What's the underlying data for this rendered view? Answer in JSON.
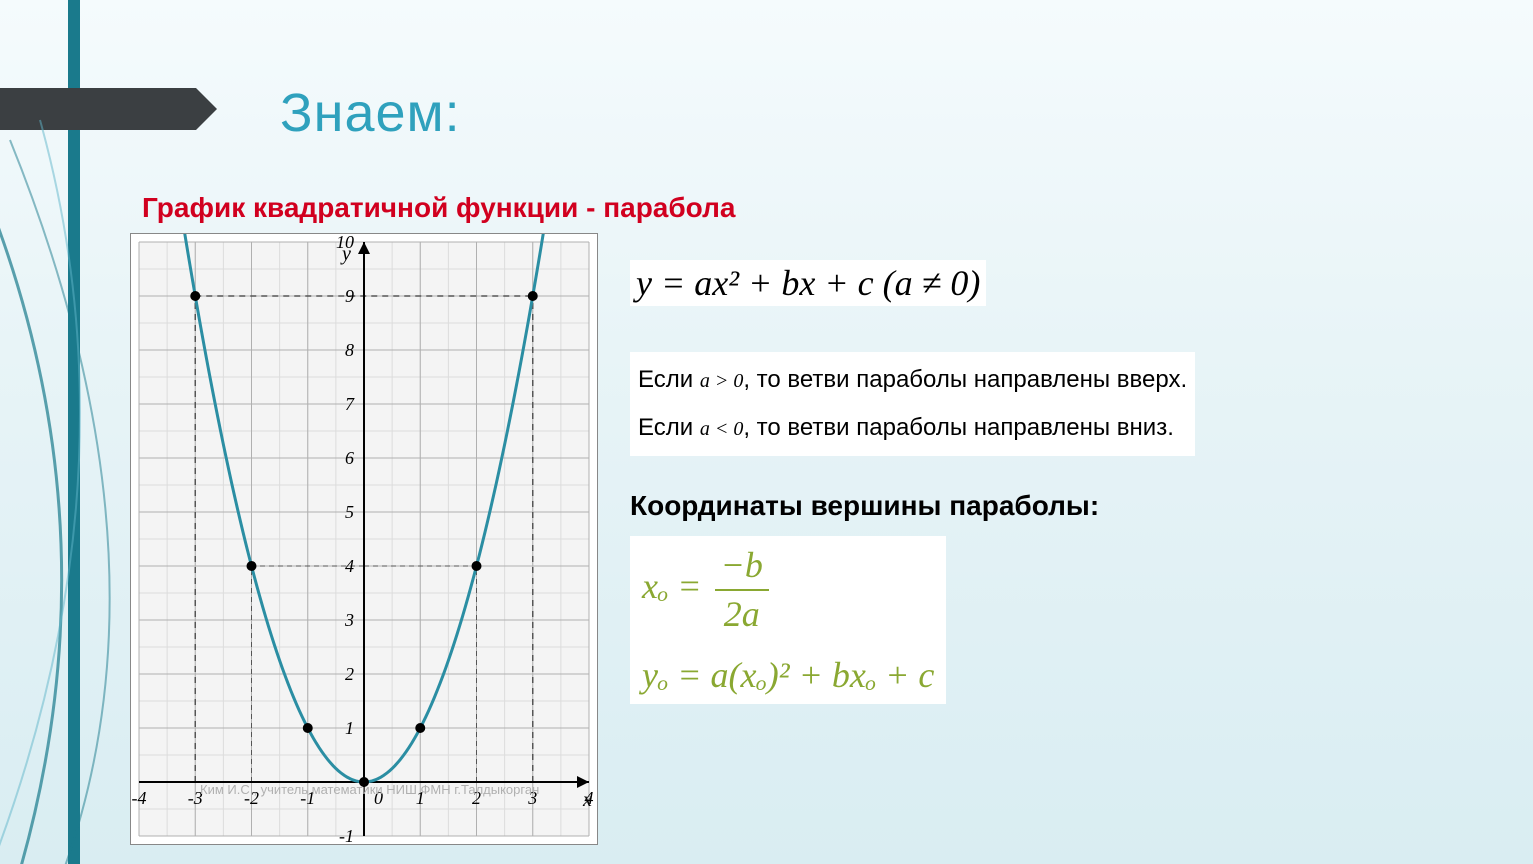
{
  "title": "Знаем:",
  "subtitle": "График квадратичной функции - парабола",
  "watermark": "Ким И.С., учитель математики НИШ ФМН г.Талдыкорган",
  "formula_main": "y = ax² + bx + c  (a ≠ 0)",
  "cond1_prefix": "Если ",
  "cond1_math": "a > 0",
  "cond1_suffix": ", то ветви параболы направлены вверх.",
  "cond2_prefix": "Если ",
  "cond2_math": "a < 0",
  "cond2_suffix": ", то ветви параболы направлены вниз.",
  "vertex_label": "Координаты вершины параболы:",
  "vertex_x_lhs": "xₒ =",
  "vertex_x_num": "−b",
  "vertex_x_den": "2a",
  "vertex_y": "yₒ = a(xₒ)² + bxₒ + c",
  "chart": {
    "type": "line",
    "x_label": "x",
    "y_label": "y",
    "xlim": [
      -4,
      4
    ],
    "ylim": [
      -1,
      10
    ],
    "xtick_step": 1,
    "ytick_step": 1,
    "x_ticks": [
      -4,
      -3,
      -2,
      -1,
      1,
      2,
      3,
      4
    ],
    "y_ticks": [
      -1,
      1,
      2,
      3,
      4,
      5,
      6,
      7,
      8,
      9,
      10
    ],
    "origin_label": "0",
    "curve_color": "#2b8ea3",
    "curve_width": 3,
    "grid_major_color": "#b0b0b0",
    "grid_minor_color": "#dcdcdc",
    "background_color": "#f4f4f4",
    "points": [
      {
        "x": -3,
        "y": 9
      },
      {
        "x": -2,
        "y": 4
      },
      {
        "x": -1,
        "y": 1
      },
      {
        "x": 0,
        "y": 0
      },
      {
        "x": 1,
        "y": 1
      },
      {
        "x": 2,
        "y": 4
      },
      {
        "x": 3,
        "y": 9
      }
    ],
    "point_color": "#000000",
    "point_radius": 5,
    "dash_color": "#555555",
    "dash_lines_at_x": [
      -3,
      3
    ],
    "dash_line_at_y": 9,
    "dash_lines_at_y_for_x": {
      "-2": 4,
      "2": 4,
      "-1": 1,
      "1": 1
    }
  },
  "colors": {
    "title": "#2fa1bd",
    "subtitle": "#d1001f",
    "stripe": "#1a7a8c",
    "arrow": "#3b3f42",
    "vertex_formula": "#8aa832"
  }
}
